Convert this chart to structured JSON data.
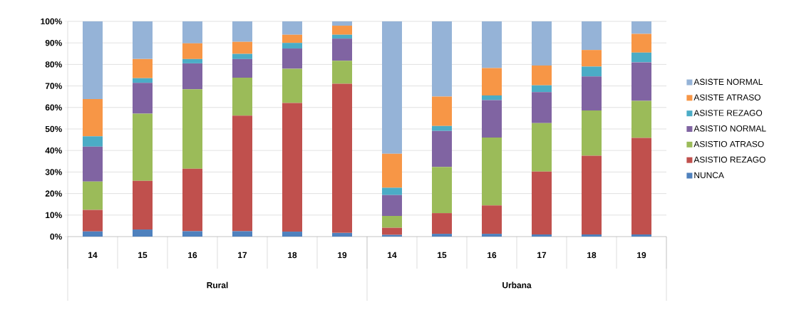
{
  "chart_data": {
    "type": "bar",
    "stacked": true,
    "categories": [
      "14",
      "15",
      "16",
      "17",
      "18",
      "19",
      "14",
      "15",
      "16",
      "17",
      "18",
      "19"
    ],
    "annotations": [
      "Rural",
      "Urbana"
    ],
    "series": [
      {
        "name": "NUNCA",
        "color": "#4f81bd",
        "values": [
          2.4,
          3.3,
          2.5,
          2.5,
          2.3,
          1.7,
          0.8,
          1.3,
          1.3,
          1.0,
          1.0,
          1.0
        ]
      },
      {
        "name": "ASISTIO REZAGO",
        "color": "#c0504d",
        "values": [
          10.0,
          22.6,
          29.0,
          53.7,
          59.8,
          69.3,
          3.3,
          9.6,
          13.2,
          29.2,
          36.6,
          44.9
        ]
      },
      {
        "name": "ASISTIO ATRASO",
        "color": "#9bbb59",
        "values": [
          13.2,
          31.2,
          37.0,
          17.6,
          15.9,
          10.7,
          5.5,
          21.5,
          31.5,
          22.5,
          21.0,
          17.2
        ]
      },
      {
        "name": "ASISTIO NORMAL",
        "color": "#8064a2",
        "values": [
          16.2,
          14.3,
          12.0,
          8.7,
          9.4,
          10.3,
          9.7,
          16.7,
          17.4,
          14.4,
          15.8,
          17.9
        ]
      },
      {
        "name": "ASISTE REZAGO",
        "color": "#4bacc6",
        "values": [
          4.8,
          2.2,
          2.0,
          2.4,
          2.6,
          1.8,
          3.4,
          2.3,
          2.2,
          3.2,
          4.6,
          4.5
        ]
      },
      {
        "name": "ASISTE ATRASO",
        "color": "#f79646",
        "values": [
          17.3,
          8.9,
          7.3,
          5.6,
          3.8,
          4.2,
          15.8,
          13.7,
          12.7,
          9.2,
          7.7,
          8.7
        ]
      },
      {
        "name": "ASISTE NORMAL",
        "color": "#95b3d7",
        "values": [
          36.1,
          17.5,
          10.2,
          9.5,
          6.2,
          2.0,
          61.5,
          34.9,
          21.7,
          20.5,
          13.3,
          5.8
        ]
      }
    ],
    "ylim": [
      0,
      100
    ],
    "yticks": [
      {
        "value": 0,
        "label": "0%"
      },
      {
        "value": 10,
        "label": "10%"
      },
      {
        "value": 20,
        "label": "20%"
      },
      {
        "value": 30,
        "label": "30%"
      },
      {
        "value": 40,
        "label": "40%"
      },
      {
        "value": 50,
        "label": "50%"
      },
      {
        "value": 60,
        "label": "60%"
      },
      {
        "value": 70,
        "label": "70%"
      },
      {
        "value": 80,
        "label": "80%"
      },
      {
        "value": 90,
        "label": "90%"
      },
      {
        "value": 100,
        "label": "100%"
      }
    ],
    "grid": "y",
    "legend": "right"
  }
}
